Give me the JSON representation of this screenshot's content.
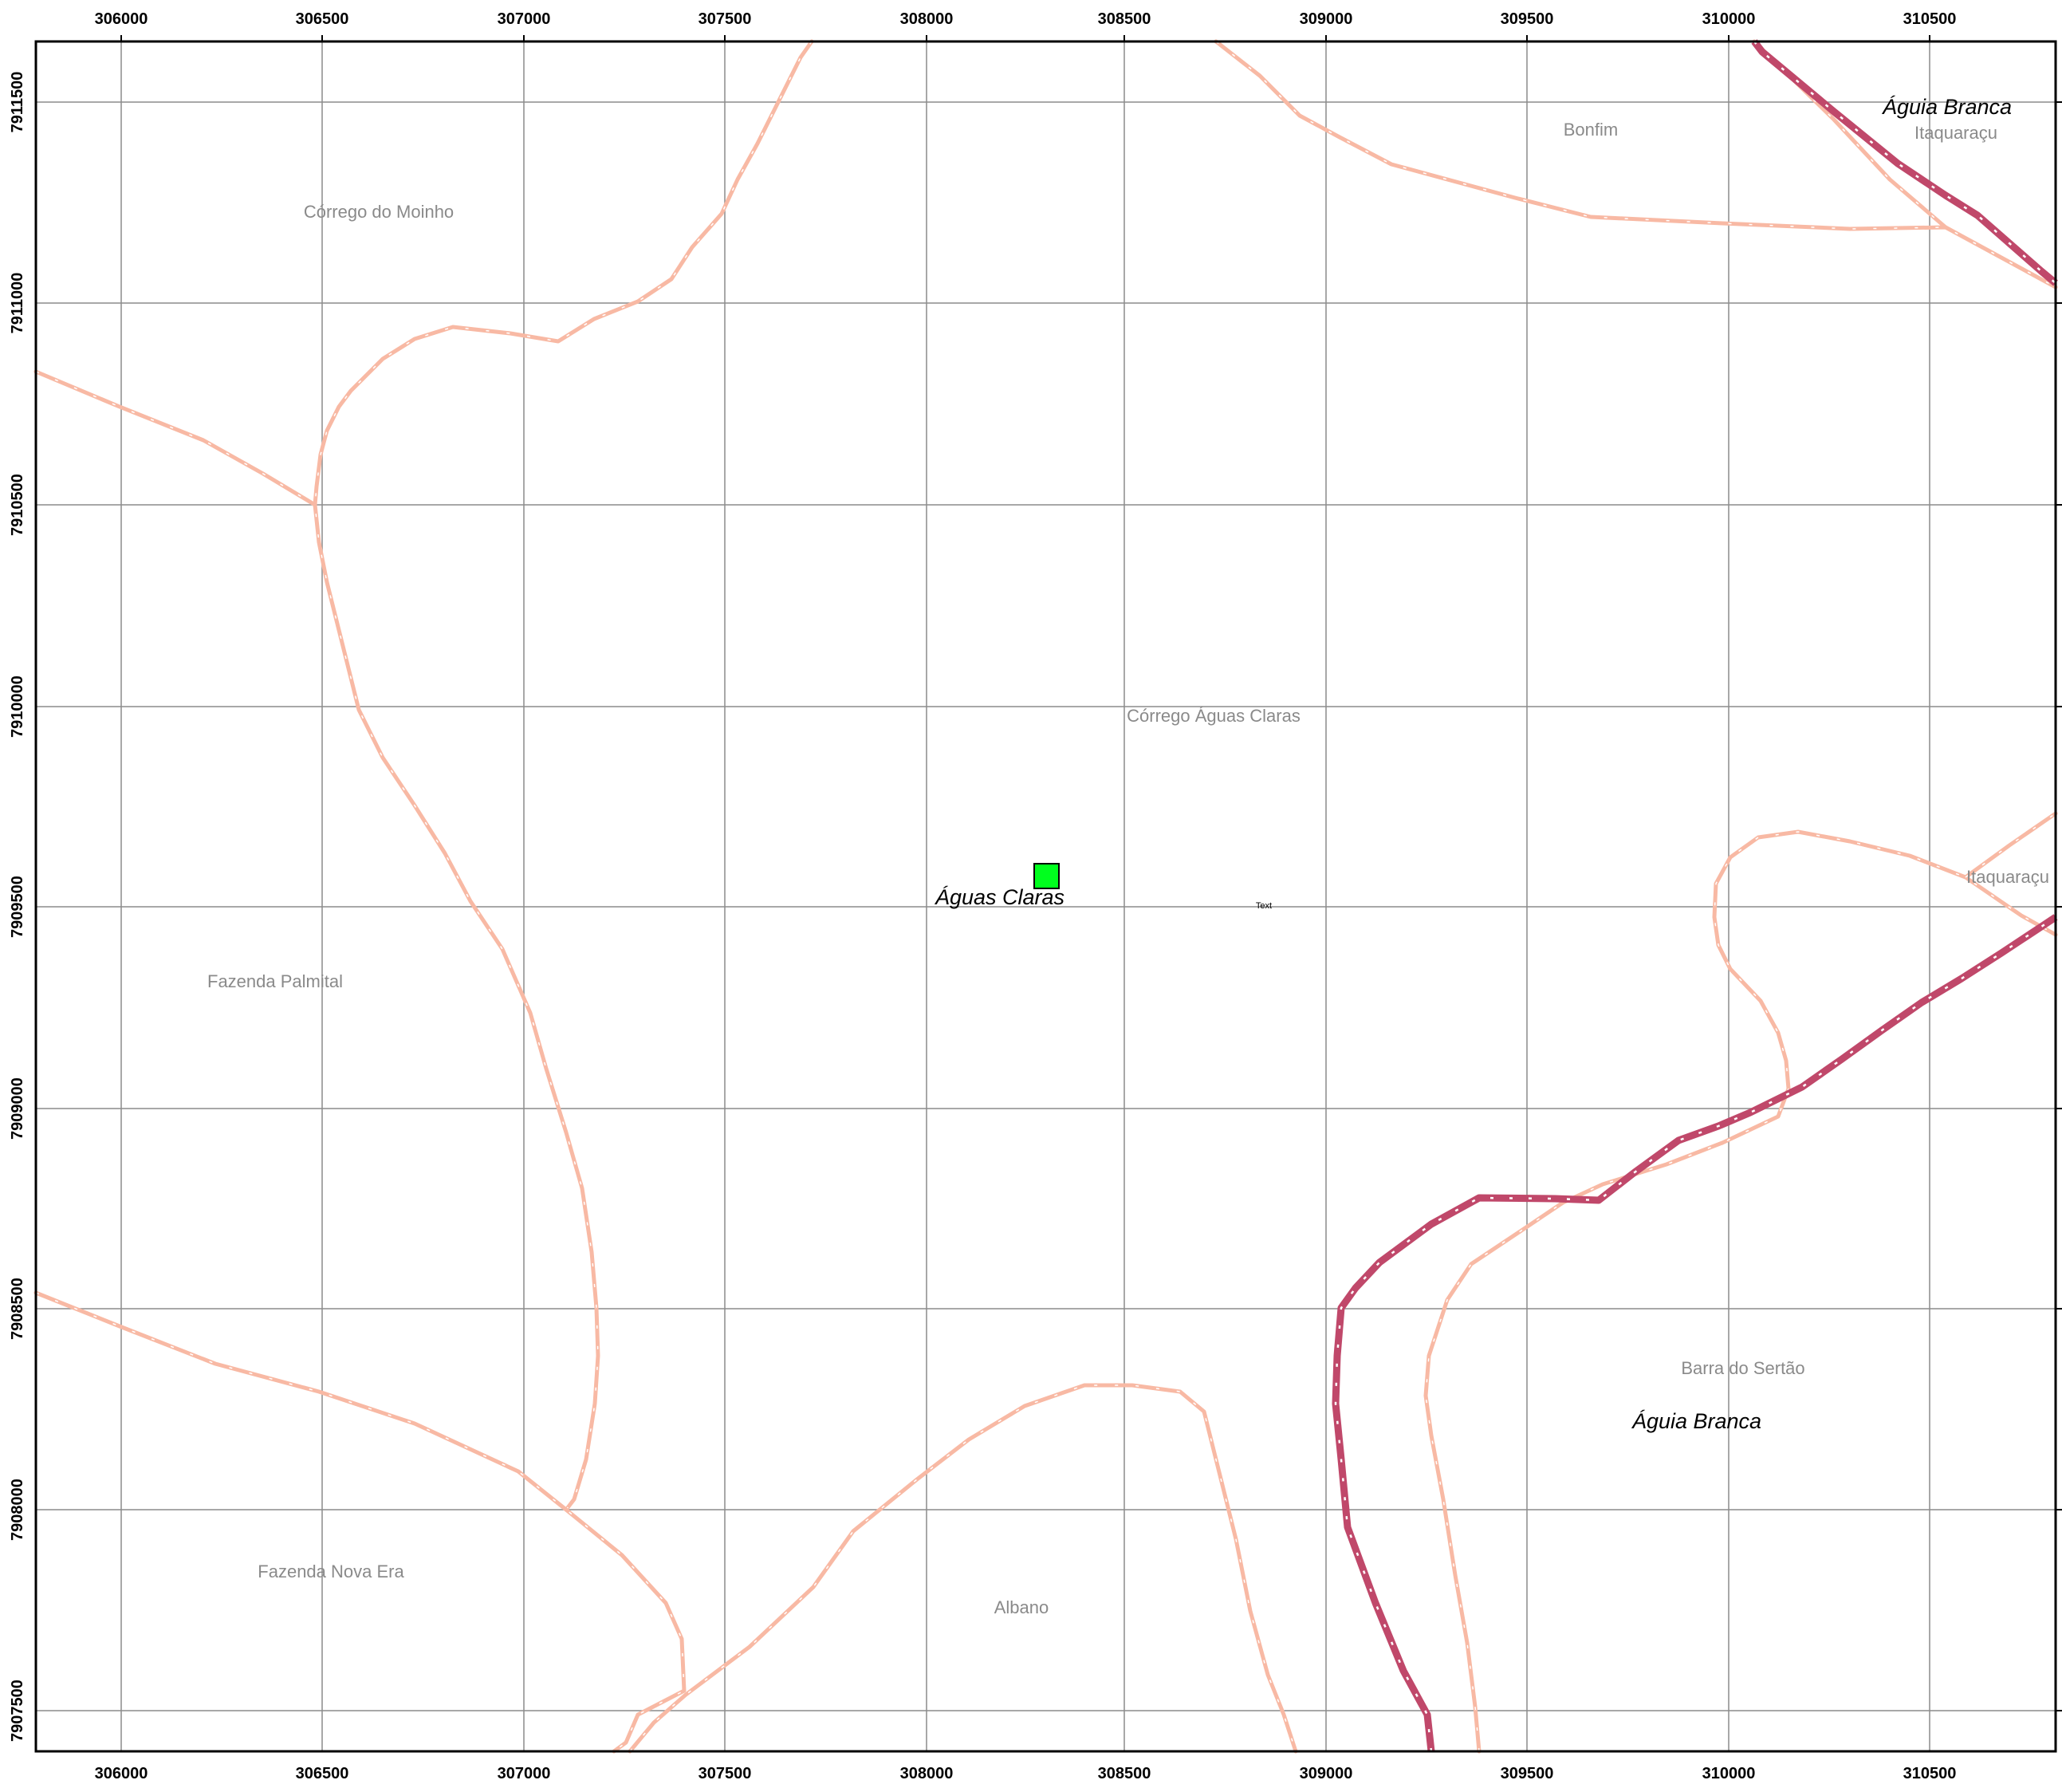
{
  "map": {
    "x_ticks": [
      "306000",
      "306500",
      "307000",
      "307500",
      "308000",
      "308500",
      "309000",
      "309500",
      "310000",
      "310500"
    ],
    "y_ticks": [
      "7911500",
      "7911000",
      "7910500",
      "7910000",
      "7909500",
      "7909000",
      "7908500",
      "7908000",
      "7907500"
    ],
    "colors": {
      "road_minor": "#f8b9a4",
      "road_major": "#c0486a",
      "marker_fill": "#00ff1e",
      "grid": "#8c8c8c"
    },
    "labels": {
      "corrego_do_moinho": "Córrego do Moinho",
      "bonfim": "Bonfim",
      "aguia_branca_top": "Águia Branca",
      "itaquaracu_top": "Itaquaraçu",
      "corrego_aguas_claras": "Córrego Águas Claras",
      "aguas_claras": "Águas Claras",
      "text_placeholder": "Text",
      "itaquaracu_right": "Itaquaraçu",
      "fazenda_palmital": "Fazenda Palmital",
      "barra_do_sertao": "Barra do Sertão",
      "aguia_branca_bottom": "Águia Branca",
      "fazenda_nova_era": "Fazenda Nova Era",
      "albano": "Albano"
    },
    "marker": {
      "name": "site-marker",
      "icon": "green-square-marker",
      "location_label": "Águas Claras"
    }
  }
}
